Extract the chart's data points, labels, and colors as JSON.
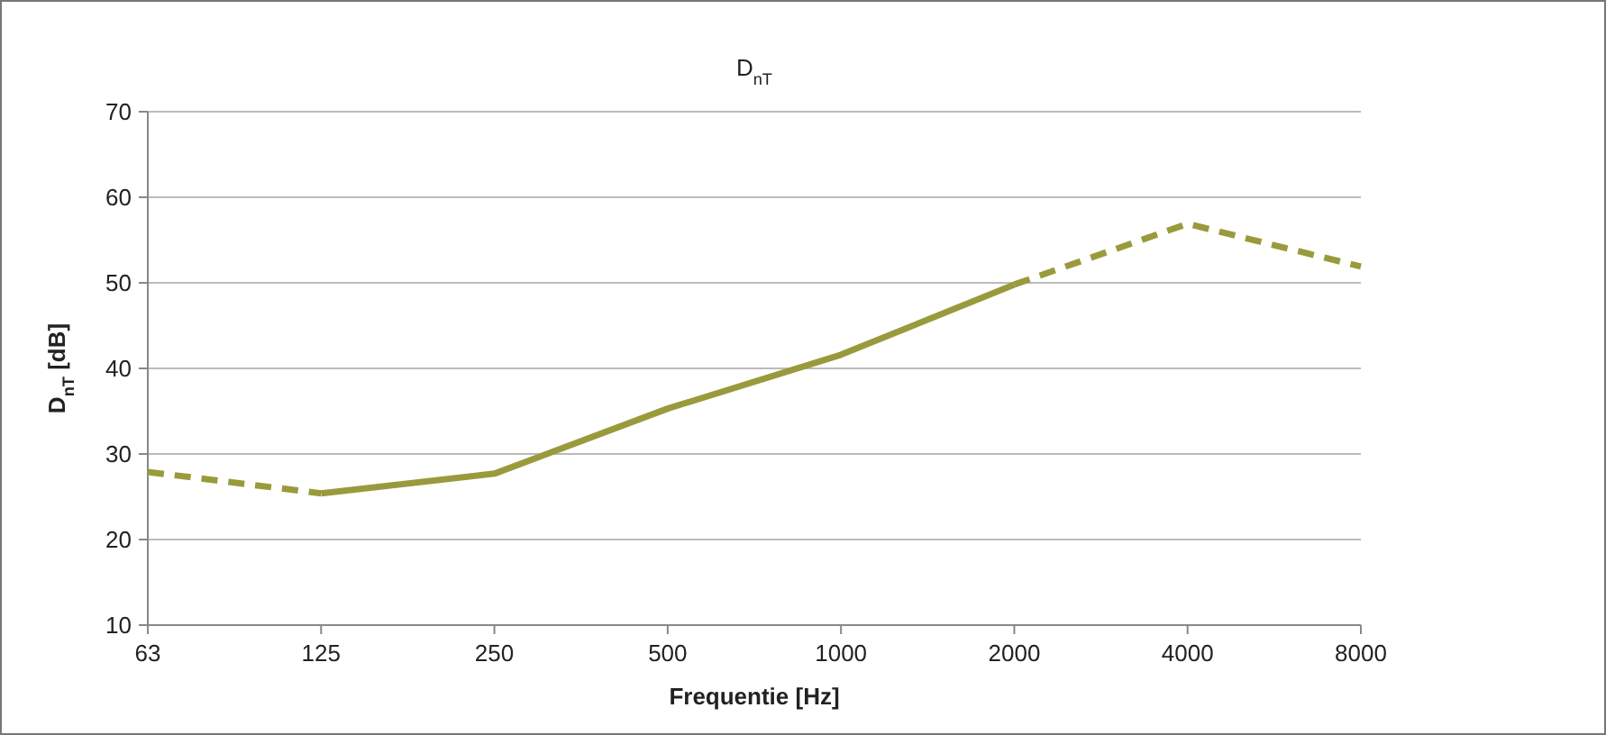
{
  "chart_data": {
    "type": "line",
    "title": "D$_{nT}$",
    "xlabel": "Frequentie [Hz]",
    "ylabel": "D$_{nT}$ [dB]",
    "categories": [
      "63",
      "125",
      "250",
      "500",
      "1000",
      "2000",
      "4000",
      "8000"
    ],
    "series": [
      {
        "color": "#999a3c",
        "line_style": "dashed",
        "values": [
          27.9,
          25.4,
          null,
          null,
          null,
          null,
          null,
          null
        ]
      },
      {
        "color": "#999a3c",
        "line_style": "solid",
        "values": [
          null,
          25.4,
          27.7,
          35.3,
          41.6,
          49.8,
          null,
          null
        ]
      },
      {
        "color": "#999a3c",
        "line_style": "dashed",
        "values": [
          null,
          null,
          null,
          null,
          null,
          49.8,
          56.9,
          51.9
        ]
      }
    ],
    "ylim": [
      10,
      70
    ],
    "yticks": [
      10,
      20,
      30,
      40,
      50,
      60,
      70
    ],
    "grid": "y"
  }
}
